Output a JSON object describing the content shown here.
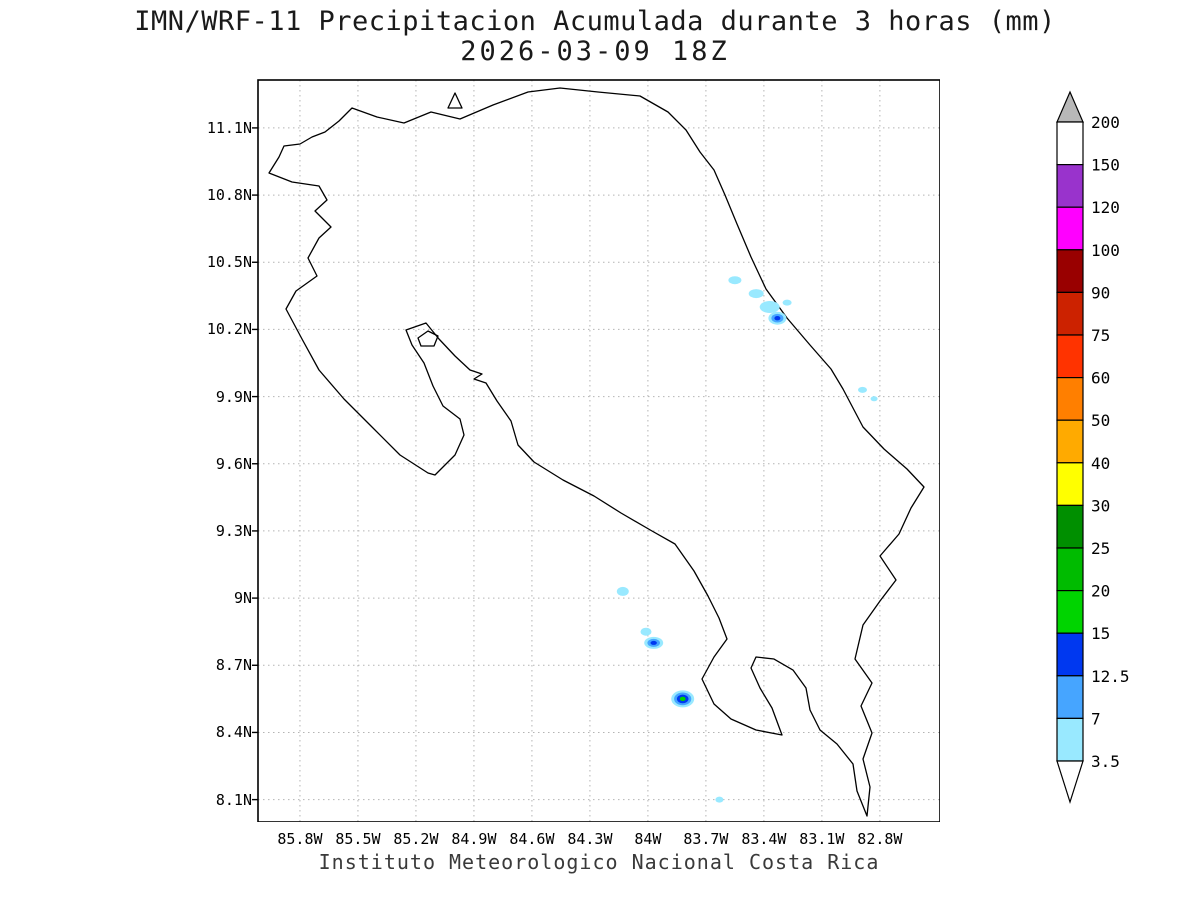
{
  "title": {
    "line1": "IMN/WRF-11 Precipitacion Acumulada durante 3 horas (mm)",
    "line2": "2026-03-09 18Z"
  },
  "footer": {
    "text": "Instituto Meteorologico Nacional Costa Rica"
  },
  "colorbar": {
    "boundaries_top_to_bottom": [
      "200",
      "150",
      "120",
      "100",
      "90",
      "75",
      "60",
      "50",
      "40",
      "30",
      "25",
      "20",
      "15",
      "12.5",
      "7",
      "3.5"
    ],
    "segment_colors_top_to_bottom": [
      "#ffffff",
      "#9933cc",
      "#ff00ff",
      "#990000",
      "#cc2200",
      "#ff3300",
      "#ff7f00",
      "#ffaa00",
      "#ffff00",
      "#008f00",
      "#00bb00",
      "#00d400",
      "#0038f0",
      "#46a5ff",
      "#99e9ff"
    ],
    "above_top_color": "#b8b8b8",
    "below_bottom_color": "#ffffff",
    "units": "mm"
  },
  "chart_data": {
    "type": "filled-contour-precipitation-map",
    "model": "IMN/WRF-11",
    "variable": "Precipitacion Acumulada durante 3 horas",
    "units": "mm",
    "valid_time": "2026-03-09 18Z",
    "region": "Costa Rica",
    "grid_on": true,
    "projection": {
      "lon_left_W": 86.017,
      "lon_right_W": 82.489,
      "lat_top_N": 11.314,
      "lat_bottom_N": 8.0
    },
    "lon_ticks": [
      {
        "label": "85.8W",
        "value": 85.8
      },
      {
        "label": "85.5W",
        "value": 85.5
      },
      {
        "label": "85.2W",
        "value": 85.2
      },
      {
        "label": "84.9W",
        "value": 84.9
      },
      {
        "label": "84.6W",
        "value": 84.6
      },
      {
        "label": "84.3W",
        "value": 84.3
      },
      {
        "label": "84W",
        "value": 84.0
      },
      {
        "label": "83.7W",
        "value": 83.7
      },
      {
        "label": "83.4W",
        "value": 83.4
      },
      {
        "label": "83.1W",
        "value": 83.1
      },
      {
        "label": "82.8W",
        "value": 82.8
      }
    ],
    "lat_ticks": [
      {
        "label": "11.1N",
        "value": 11.1
      },
      {
        "label": "10.8N",
        "value": 10.8
      },
      {
        "label": "10.5N",
        "value": 10.5
      },
      {
        "label": "10.2N",
        "value": 10.2
      },
      {
        "label": "9.9N",
        "value": 9.9
      },
      {
        "label": "9.6N",
        "value": 9.6
      },
      {
        "label": "9.3N",
        "value": 9.3
      },
      {
        "label": "9N",
        "value": 9.0
      },
      {
        "label": "8.7N",
        "value": 8.7
      },
      {
        "label": "8.4N",
        "value": 8.4
      },
      {
        "label": "8.1N",
        "value": 8.1
      }
    ],
    "contour_levels_mm": [
      3.5,
      7,
      12.5,
      15,
      20,
      25,
      30,
      40,
      50,
      60,
      75,
      90,
      100,
      120,
      150,
      200
    ],
    "cells": [
      {
        "lon_W": 83.55,
        "lat_N": 10.42,
        "w": 13,
        "h": 8,
        "levels": [
          "3.5"
        ],
        "peak_mm": "3.5-7"
      },
      {
        "lon_W": 83.44,
        "lat_N": 10.36,
        "w": 15,
        "h": 9,
        "levels": [
          "3.5"
        ],
        "peak_mm": "3.5-7"
      },
      {
        "lon_W": 83.37,
        "lat_N": 10.3,
        "w": 20,
        "h": 12,
        "levels": [
          "3.5"
        ],
        "peak_mm": "3.5-7"
      },
      {
        "lon_W": 83.33,
        "lat_N": 10.25,
        "w": 18,
        "h": 13,
        "levels": [
          "3.5",
          "7",
          "12.5"
        ],
        "peak_mm": "12.5-15"
      },
      {
        "lon_W": 83.28,
        "lat_N": 10.32,
        "w": 9,
        "h": 6,
        "levels": [
          "3.5"
        ],
        "peak_mm": "3.5-7"
      },
      {
        "lon_W": 82.89,
        "lat_N": 9.93,
        "w": 9,
        "h": 6,
        "levels": [
          "3.5"
        ],
        "peak_mm": "3.5-7"
      },
      {
        "lon_W": 82.83,
        "lat_N": 9.89,
        "w": 7,
        "h": 5,
        "levels": [
          "3.5"
        ],
        "peak_mm": "3.5-7"
      },
      {
        "lon_W": 84.13,
        "lat_N": 9.03,
        "w": 12,
        "h": 9,
        "levels": [
          "3.5"
        ],
        "peak_mm": "3.5-7"
      },
      {
        "lon_W": 84.01,
        "lat_N": 8.85,
        "w": 11,
        "h": 8,
        "levels": [
          "3.5"
        ],
        "peak_mm": "3.5-7"
      },
      {
        "lon_W": 83.97,
        "lat_N": 8.8,
        "w": 19,
        "h": 12,
        "levels": [
          "3.5",
          "7",
          "12.5"
        ],
        "peak_mm": "12.5-15"
      },
      {
        "lon_W": 83.82,
        "lat_N": 8.55,
        "w": 23,
        "h": 17,
        "levels": [
          "3.5",
          "7",
          "12.5",
          "15"
        ],
        "peak_mm": "15-20"
      },
      {
        "lon_W": 83.63,
        "lat_N": 8.1,
        "w": 8,
        "h": 6,
        "levels": [
          "3.5"
        ],
        "peak_mm": "3.5-7"
      }
    ]
  }
}
